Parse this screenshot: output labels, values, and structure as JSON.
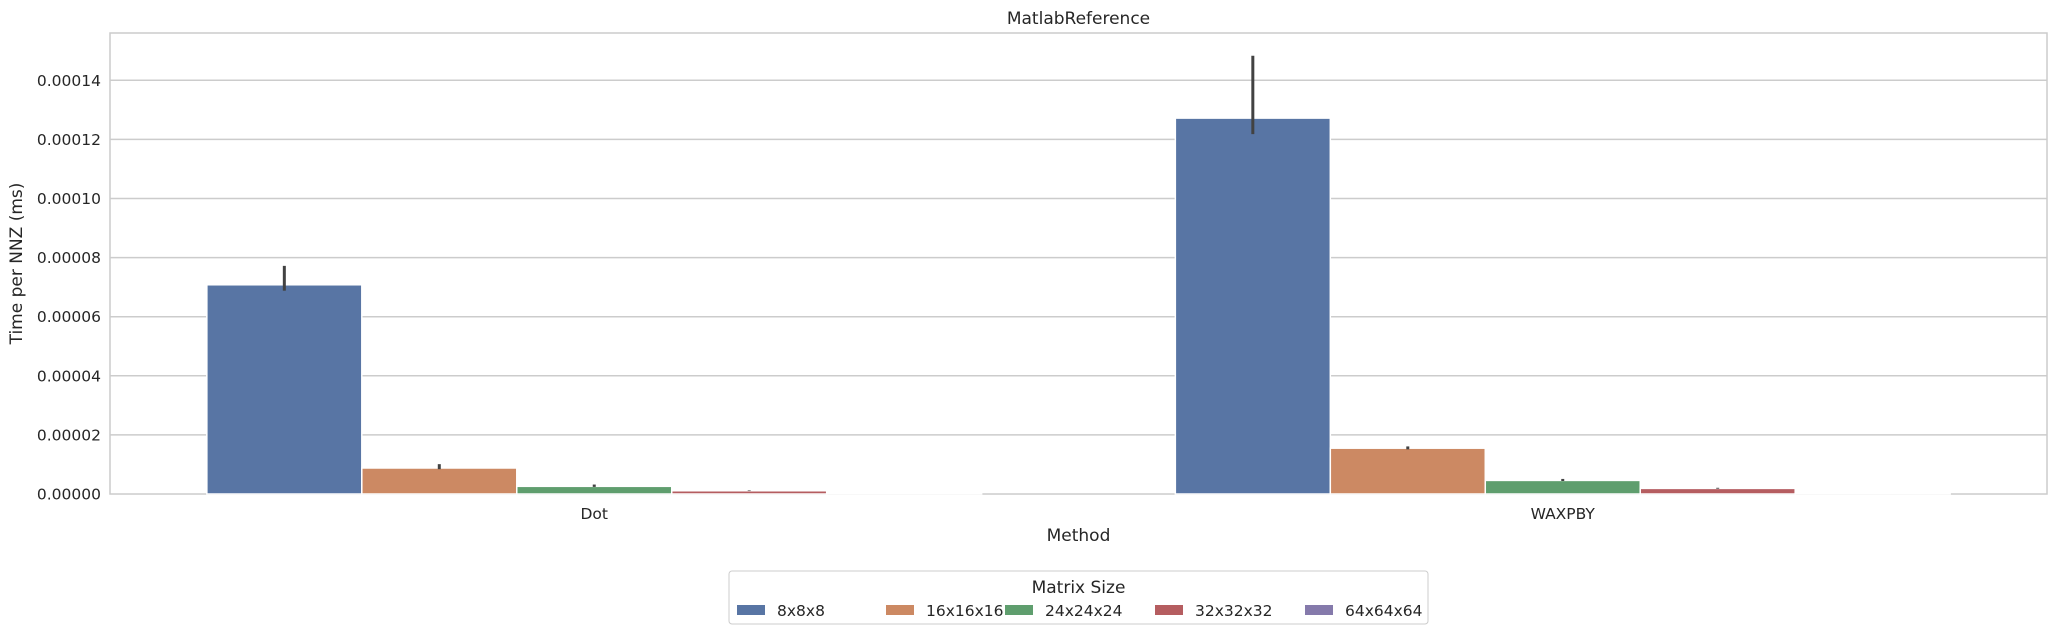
{
  "chart_data": {
    "type": "bar",
    "title": "MatlabReference",
    "xlabel": "Method",
    "ylabel": "Time per NNZ (ms)",
    "categories": [
      "Dot",
      "WAXPBY"
    ],
    "ylim": [
      0,
      0.000156
    ],
    "yticks": [
      "0.00000",
      "0.00002",
      "0.00004",
      "0.00006",
      "0.00008",
      "0.00010",
      "0.00012",
      "0.00014"
    ],
    "grid": true,
    "legend": {
      "title": "Matrix Size",
      "placement": "bottom-center"
    },
    "series": [
      {
        "name": "8x8x8",
        "color": "#5875a4",
        "values": [
          7.08e-05,
          0.0001272
        ],
        "err_low": [
          6.88e-05,
          0.0001218
        ],
        "err_high": [
          7.72e-05,
          0.0001483
        ]
      },
      {
        "name": "16x16x16",
        "color": "#cc8963",
        "values": [
          8.8e-06,
          1.55e-05
        ],
        "err_low": [
          8.4e-06,
          1.51e-05
        ],
        "err_high": [
          1.01e-05,
          1.61e-05
        ]
      },
      {
        "name": "24x24x24",
        "color": "#5f9e6e",
        "values": [
          2.6e-06,
          4.6e-06
        ],
        "err_low": [
          2.4e-06,
          4.4e-06
        ],
        "err_high": [
          3.2e-06,
          5.1e-06
        ]
      },
      {
        "name": "32x32x32",
        "color": "#b55d60",
        "values": [
          1.1e-06,
          1.9e-06
        ],
        "err_low": [
          1e-06,
          1.8e-06
        ],
        "err_high": [
          1.2e-06,
          2.1e-06
        ]
      },
      {
        "name": "64x64x64",
        "color": "#857aab",
        "values": [
          1e-07,
          2e-07
        ],
        "err_low": [
          1e-07,
          2e-07
        ],
        "err_high": [
          1e-07,
          2e-07
        ]
      }
    ]
  }
}
